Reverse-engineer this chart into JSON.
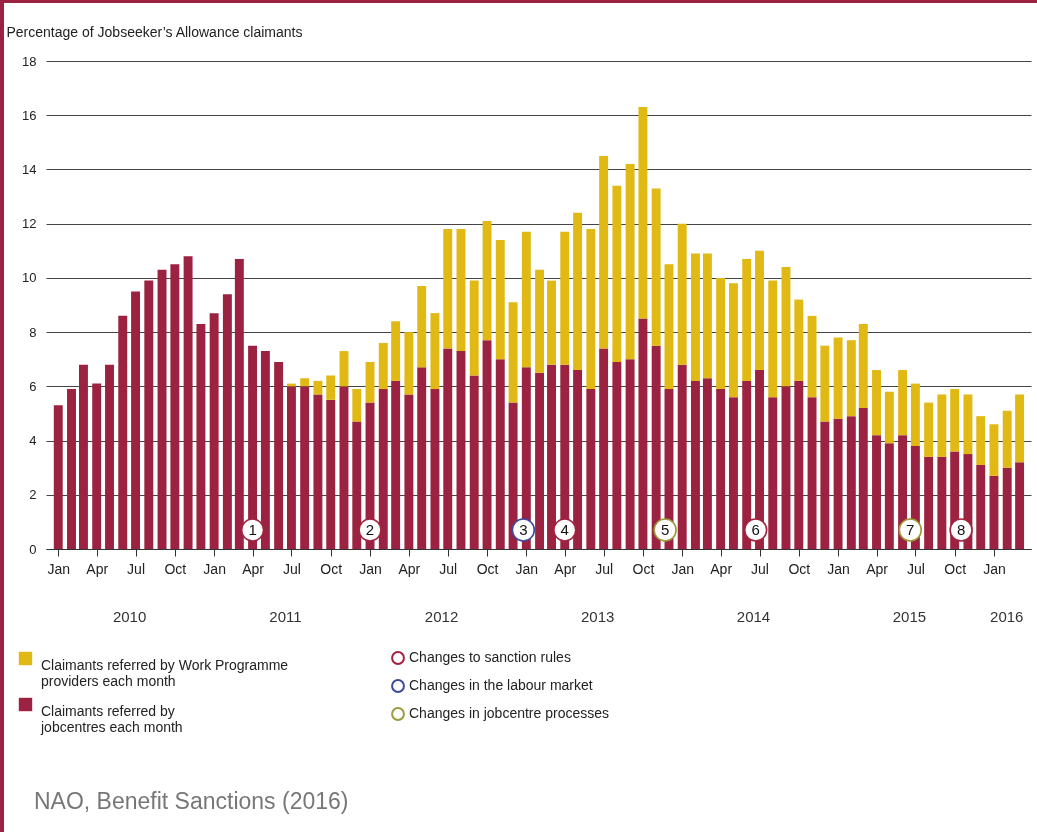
{
  "chart_data": {
    "type": "bar",
    "stacked": true,
    "ylabel": "Percentage of Jobseeker’s Allowance claimants",
    "x": [
      "2010-01",
      "2010-02",
      "2010-03",
      "2010-04",
      "2010-05",
      "2010-06",
      "2010-07",
      "2010-08",
      "2010-09",
      "2010-10",
      "2010-11",
      "2010-12",
      "2011-01",
      "2011-02",
      "2011-03",
      "2011-04",
      "2011-05",
      "2011-06",
      "2011-07",
      "2011-08",
      "2011-09",
      "2011-10",
      "2011-11",
      "2011-12",
      "2012-01",
      "2012-02",
      "2012-03",
      "2012-04",
      "2012-05",
      "2012-06",
      "2012-07",
      "2012-08",
      "2012-09",
      "2012-10",
      "2012-11",
      "2012-12",
      "2013-01",
      "2013-02",
      "2013-03",
      "2013-04",
      "2013-05",
      "2013-06",
      "2013-07",
      "2013-08",
      "2013-09",
      "2013-10",
      "2013-11",
      "2013-12",
      "2014-01",
      "2014-02",
      "2014-03",
      "2014-04",
      "2014-05",
      "2014-06",
      "2014-07",
      "2014-08",
      "2014-09",
      "2014-10",
      "2014-11",
      "2014-12",
      "2015-01",
      "2015-02",
      "2015-03",
      "2015-04",
      "2015-05",
      "2015-06",
      "2015-07",
      "2015-08",
      "2015-09",
      "2015-10",
      "2015-11",
      "2015-12",
      "2016-01",
      "2016-02",
      "2016-03"
    ],
    "xlim": [
      "2009-12-15",
      "2016-03-16"
    ],
    "xticks": [
      {
        "value": "2010-01",
        "label": "Jan"
      },
      {
        "value": "2010-04",
        "label": "Apr"
      },
      {
        "value": "2010-07",
        "label": "Jul"
      },
      {
        "value": "2010-10",
        "label": "Oct"
      },
      {
        "value": "2011-01",
        "label": "Jan"
      },
      {
        "value": "2011-04",
        "label": "Apr"
      },
      {
        "value": "2011-07",
        "label": "Jul"
      },
      {
        "value": "2011-10",
        "label": "Oct"
      },
      {
        "value": "2012-01",
        "label": "Jan"
      },
      {
        "value": "2012-04",
        "label": "Apr"
      },
      {
        "value": "2012-07",
        "label": "Jul"
      },
      {
        "value": "2012-10",
        "label": "Oct"
      },
      {
        "value": "2013-01",
        "label": "Jan"
      },
      {
        "value": "2013-04",
        "label": "Apr"
      },
      {
        "value": "2013-07",
        "label": "Jul"
      },
      {
        "value": "2013-10",
        "label": "Oct"
      },
      {
        "value": "2014-01",
        "label": "Jan"
      },
      {
        "value": "2014-04",
        "label": "Apr"
      },
      {
        "value": "2014-07",
        "label": "Jul"
      },
      {
        "value": "2014-10",
        "label": "Oct"
      },
      {
        "value": "2015-01",
        "label": "Jan"
      },
      {
        "value": "2015-04",
        "label": "Apr"
      },
      {
        "value": "2015-07",
        "label": "Jul"
      },
      {
        "value": "2015-10",
        "label": "Oct"
      },
      {
        "value": "2016-01",
        "label": "Jan"
      }
    ],
    "ylim": [
      0,
      18
    ],
    "yticks": [
      0,
      2,
      4,
      6,
      8,
      10,
      12,
      14,
      16,
      18
    ],
    "grid": "y",
    "legend": "bottom",
    "marker": "circle",
    "series": [
      {
        "name": "Claimants referred by jobcentres each month",
        "color": "#9b2240",
        "values": [
          5.3,
          5.9,
          6.8,
          6.1,
          6.8,
          8.6,
          9.5,
          9.9,
          10.3,
          10.5,
          10.8,
          8.3,
          8.7,
          9.4,
          10.7,
          7.5,
          7.3,
          6.9,
          6.0,
          6.0,
          5.7,
          5.5,
          6.0,
          4.7,
          5.4,
          5.9,
          6.2,
          5.7,
          6.7,
          5.9,
          7.4,
          7.3,
          6.4,
          7.7,
          7.0,
          5.4,
          6.7,
          6.5,
          6.8,
          6.8,
          6.6,
          5.9,
          7.4,
          6.9,
          7.0,
          8.5,
          7.5,
          5.9,
          6.8,
          6.2,
          6.3,
          5.9,
          5.6,
          6.2,
          6.6,
          5.6,
          6.0,
          6.2,
          5.6,
          4.7,
          4.8,
          4.9,
          5.2,
          4.2,
          3.9,
          4.2,
          3.8,
          3.4,
          3.4,
          3.6,
          3.5,
          3.1,
          2.7,
          3.0,
          3.2
        ]
      },
      {
        "name": "Claimants referred by Work Programme providers each month",
        "color": "#e0b915",
        "values": [
          0,
          0,
          0,
          0,
          0,
          0,
          0,
          0,
          0,
          0,
          0,
          0,
          0,
          0,
          0,
          0,
          0,
          0,
          0.1,
          0.3,
          0.5,
          0.9,
          1.3,
          1.2,
          1.5,
          1.7,
          2.2,
          2.3,
          3.0,
          2.8,
          4.4,
          4.5,
          3.5,
          4.4,
          4.4,
          3.7,
          5.0,
          3.8,
          3.1,
          4.9,
          5.8,
          5.9,
          7.1,
          6.5,
          7.2,
          7.8,
          5.8,
          4.6,
          5.2,
          4.7,
          4.6,
          4.1,
          4.2,
          4.5,
          4.4,
          4.3,
          4.4,
          3.0,
          3.0,
          2.8,
          3.0,
          2.8,
          3.1,
          2.4,
          1.9,
          2.4,
          2.3,
          2.0,
          2.3,
          2.3,
          2.2,
          1.8,
          1.9,
          2.1,
          2.5
        ]
      },
      {
        "name": "Changes to sanction rules",
        "type": "scatter",
        "color": "#a3233f",
        "x": [
          "2011-04",
          "2012-01",
          "2013-04",
          "2014-06-22",
          "2015-10-16"
        ],
        "values": [
          0.7,
          0.7,
          0.7,
          0.7,
          0.7
        ]
      },
      {
        "name": "Changes in the labour market",
        "type": "scatter",
        "color": "#3b4a9a",
        "x": [
          "2012-12-25"
        ],
        "values": [
          0.7
        ]
      },
      {
        "name": "Changes in jobcentre processes",
        "type": "scatter",
        "color": "#9c9a3a",
        "x": [
          "2013-11-22",
          "2015-06-19"
        ],
        "values": [
          0.7,
          0.7
        ]
      }
    ],
    "annotations": [
      {
        "text": "1",
        "x": "2011-04",
        "y": 0.7
      },
      {
        "text": "2",
        "x": "2012-01",
        "y": 0.7
      },
      {
        "text": "3",
        "x": "2012-12-25",
        "y": 0.7
      },
      {
        "text": "4",
        "x": "2013-04",
        "y": 0.7
      },
      {
        "text": "5",
        "x": "2013-11-22",
        "y": 0.7
      },
      {
        "text": "6",
        "x": "2014-06-22",
        "y": 0.7
      },
      {
        "text": "7",
        "x": "2015-06-19",
        "y": 0.7
      },
      {
        "text": "8",
        "x": "2015-10-16",
        "y": 0.7
      },
      "2010",
      "2011",
      "2012",
      "2013",
      "2014",
      "2015",
      "2016",
      "NAO, Benefit Sanctions (2016)"
    ]
  }
}
